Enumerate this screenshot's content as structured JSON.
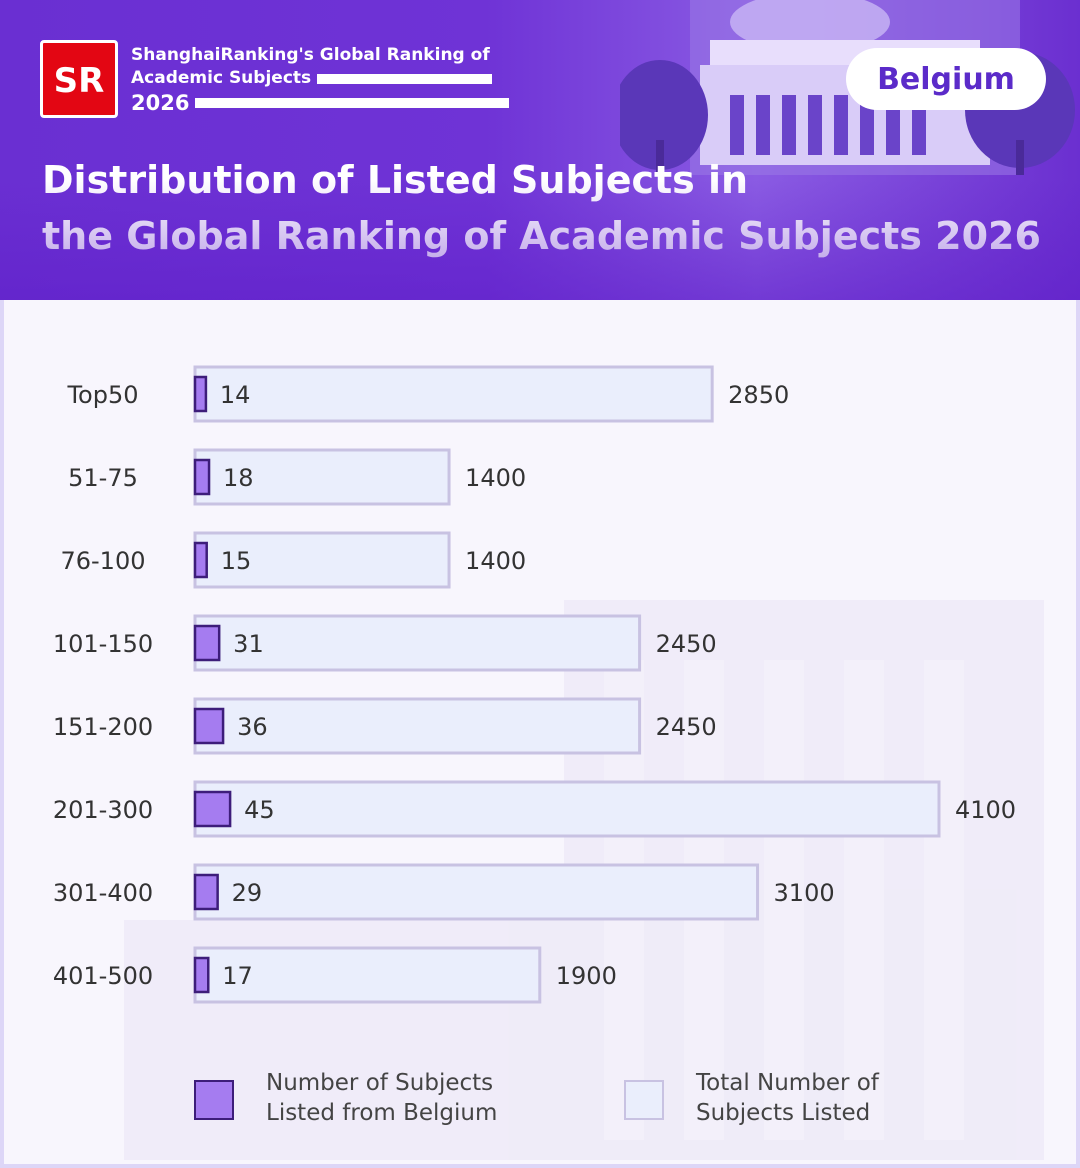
{
  "brand": {
    "line1": "ShanghaiRanking's Global Ranking of",
    "line2": "Academic Subjects",
    "year": "2026",
    "logo_text": "SR"
  },
  "country": "Belgium",
  "title_line1": "Distribution of Listed Subjects in",
  "title_line2": "the Global Ranking of Academic Subjects 2026",
  "colors": {
    "country_bar": "#a57cf0",
    "country_bar_stroke": "#3d1d7a",
    "total_bar": "#eaeefc",
    "total_bar_stroke": "#c8c2e2",
    "header": "#6a2fd2"
  },
  "chart_data": {
    "type": "bar",
    "orientation": "horizontal",
    "categories": [
      "Top50",
      "51-75",
      "76-100",
      "101-150",
      "151-200",
      "201-300",
      "301-400",
      "401-500"
    ],
    "series": [
      {
        "name": "Number of Subjects Listed from Belgium",
        "values": [
          14,
          18,
          15,
          31,
          36,
          45,
          29,
          17
        ]
      },
      {
        "name": "Total Number of Subjects Listed",
        "values": [
          2850,
          1400,
          1400,
          2450,
          2450,
          4100,
          3100,
          1900
        ]
      }
    ],
    "legend": [
      {
        "line1": "Number of Subjects",
        "line2": "Listed from Belgium"
      },
      {
        "line1": "Total Number of",
        "line2": "Subjects Listed"
      }
    ],
    "legend_position": "bottom"
  }
}
